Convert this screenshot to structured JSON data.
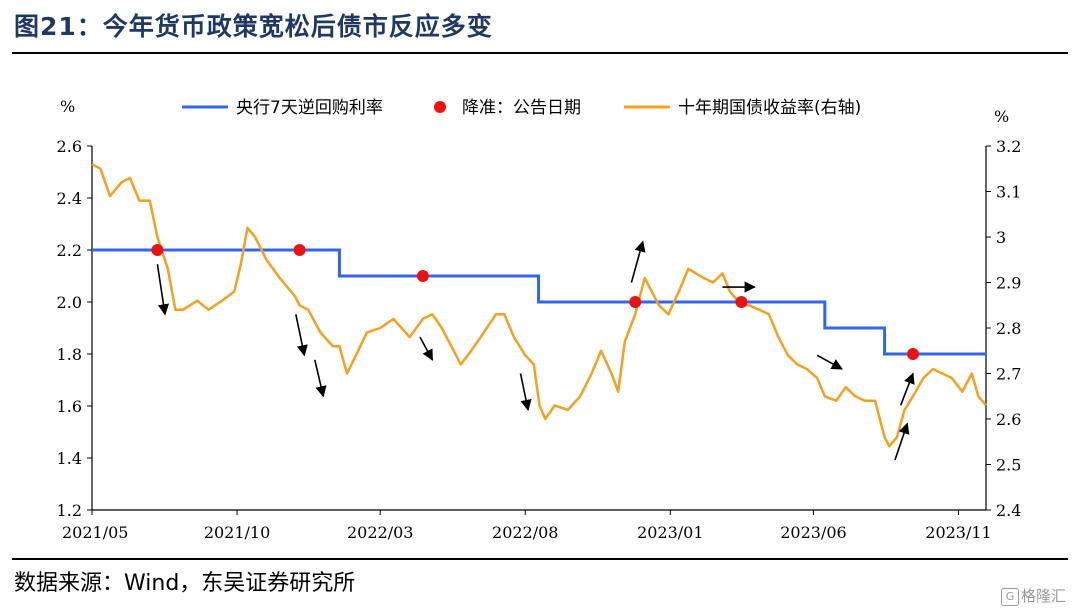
{
  "figure": {
    "title": "图21：今年货币政策宽松后债市反应多变",
    "source": "数据来源：Wind，东吴证券研究所",
    "watermark": "格隆汇"
  },
  "chart_data": {
    "type": "line",
    "left_axis": {
      "unit": "%",
      "ylim": [
        1.2,
        2.6
      ],
      "ticks": [
        "1.2",
        "1.4",
        "1.6",
        "1.8",
        "2.0",
        "2.2",
        "2.4",
        "2.6"
      ]
    },
    "right_axis": {
      "unit": "%",
      "ylim": [
        2.4,
        3.2
      ],
      "ticks": [
        "2.4",
        "2.5",
        "2.6",
        "2.7",
        "2.8",
        "2.9",
        "3",
        "3.1",
        "3.2"
      ]
    },
    "x_axis": {
      "range": [
        "2021-05-01",
        "2023-11-30"
      ],
      "tick_labels": [
        "2021/05",
        "2021/10",
        "2022/03",
        "2022/08",
        "2023/01",
        "2023/06",
        "2023/11"
      ],
      "tick_dates": [
        "2021-05-01",
        "2021-10-01",
        "2022-03-01",
        "2022-08-01",
        "2023-01-01",
        "2023-06-01",
        "2023-11-01"
      ]
    },
    "grid": false,
    "legend_position": "top",
    "series": [
      {
        "name": "央行7天逆回购利率",
        "axis": "left",
        "color": "#3366ee",
        "style": "step",
        "points": [
          [
            "2021-05-01",
            2.2
          ],
          [
            "2022-01-17",
            2.1
          ],
          [
            "2022-08-15",
            2.0
          ],
          [
            "2023-06-13",
            1.9
          ],
          [
            "2023-08-15",
            1.8
          ],
          [
            "2023-11-30",
            1.8
          ]
        ]
      },
      {
        "name": "降准：公告日期",
        "axis": "left",
        "color": "#ee1111",
        "style": "marker",
        "points": [
          [
            "2021-07-09",
            2.2
          ],
          [
            "2021-12-06",
            2.2
          ],
          [
            "2022-04-15",
            2.1
          ],
          [
            "2022-11-25",
            2.0
          ],
          [
            "2023-03-17",
            2.0
          ],
          [
            "2023-09-14",
            1.8
          ]
        ]
      },
      {
        "name": "十年期国债收益率(右轴)",
        "axis": "right",
        "color": "#f5a01e",
        "style": "line",
        "points": [
          [
            "2021-05-01",
            3.16
          ],
          [
            "2021-05-10",
            3.15
          ],
          [
            "2021-05-20",
            3.09
          ],
          [
            "2021-06-01",
            3.12
          ],
          [
            "2021-06-10",
            3.13
          ],
          [
            "2021-06-20",
            3.08
          ],
          [
            "2021-07-01",
            3.08
          ],
          [
            "2021-07-09",
            3.0
          ],
          [
            "2021-07-20",
            2.93
          ],
          [
            "2021-07-28",
            2.84
          ],
          [
            "2021-08-05",
            2.84
          ],
          [
            "2021-08-20",
            2.86
          ],
          [
            "2021-09-01",
            2.84
          ],
          [
            "2021-09-15",
            2.86
          ],
          [
            "2021-09-28",
            2.88
          ],
          [
            "2021-10-05",
            2.94
          ],
          [
            "2021-10-12",
            3.02
          ],
          [
            "2021-10-20",
            3.0
          ],
          [
            "2021-11-01",
            2.95
          ],
          [
            "2021-11-15",
            2.91
          ],
          [
            "2021-12-01",
            2.87
          ],
          [
            "2021-12-06",
            2.85
          ],
          [
            "2021-12-15",
            2.84
          ],
          [
            "2021-12-28",
            2.79
          ],
          [
            "2022-01-10",
            2.76
          ],
          [
            "2022-01-17",
            2.76
          ],
          [
            "2022-01-25",
            2.7
          ],
          [
            "2022-02-01",
            2.73
          ],
          [
            "2022-02-15",
            2.79
          ],
          [
            "2022-03-01",
            2.8
          ],
          [
            "2022-03-15",
            2.82
          ],
          [
            "2022-04-01",
            2.78
          ],
          [
            "2022-04-15",
            2.82
          ],
          [
            "2022-04-25",
            2.83
          ],
          [
            "2022-05-05",
            2.8
          ],
          [
            "2022-05-15",
            2.76
          ],
          [
            "2022-05-25",
            2.72
          ],
          [
            "2022-06-05",
            2.75
          ],
          [
            "2022-06-15",
            2.78
          ],
          [
            "2022-07-01",
            2.83
          ],
          [
            "2022-07-10",
            2.83
          ],
          [
            "2022-07-20",
            2.78
          ],
          [
            "2022-08-01",
            2.74
          ],
          [
            "2022-08-10",
            2.72
          ],
          [
            "2022-08-16",
            2.63
          ],
          [
            "2022-08-22",
            2.6
          ],
          [
            "2022-09-01",
            2.63
          ],
          [
            "2022-09-15",
            2.62
          ],
          [
            "2022-09-28",
            2.65
          ],
          [
            "2022-10-10",
            2.7
          ],
          [
            "2022-10-20",
            2.75
          ],
          [
            "2022-10-31",
            2.7
          ],
          [
            "2022-11-07",
            2.66
          ],
          [
            "2022-11-14",
            2.77
          ],
          [
            "2022-11-25",
            2.83
          ],
          [
            "2022-12-05",
            2.91
          ],
          [
            "2022-12-10",
            2.89
          ],
          [
            "2022-12-20",
            2.85
          ],
          [
            "2022-12-30",
            2.83
          ],
          [
            "2023-01-10",
            2.88
          ],
          [
            "2023-01-20",
            2.93
          ],
          [
            "2023-02-05",
            2.91
          ],
          [
            "2023-02-15",
            2.9
          ],
          [
            "2023-02-25",
            2.92
          ],
          [
            "2023-03-05",
            2.88
          ],
          [
            "2023-03-17",
            2.85
          ],
          [
            "2023-03-25",
            2.85
          ],
          [
            "2023-04-05",
            2.84
          ],
          [
            "2023-04-15",
            2.83
          ],
          [
            "2023-04-25",
            2.78
          ],
          [
            "2023-05-05",
            2.74
          ],
          [
            "2023-05-15",
            2.72
          ],
          [
            "2023-05-25",
            2.71
          ],
          [
            "2023-06-05",
            2.69
          ],
          [
            "2023-06-13",
            2.65
          ],
          [
            "2023-06-25",
            2.64
          ],
          [
            "2023-07-05",
            2.67
          ],
          [
            "2023-07-15",
            2.65
          ],
          [
            "2023-07-25",
            2.64
          ],
          [
            "2023-08-05",
            2.64
          ],
          [
            "2023-08-10",
            2.6
          ],
          [
            "2023-08-15",
            2.56
          ],
          [
            "2023-08-20",
            2.54
          ],
          [
            "2023-08-28",
            2.56
          ],
          [
            "2023-09-05",
            2.62
          ],
          [
            "2023-09-14",
            2.65
          ],
          [
            "2023-09-25",
            2.69
          ],
          [
            "2023-10-05",
            2.71
          ],
          [
            "2023-10-15",
            2.7
          ],
          [
            "2023-10-25",
            2.69
          ],
          [
            "2023-11-05",
            2.66
          ],
          [
            "2023-11-15",
            2.7
          ],
          [
            "2023-11-22",
            2.65
          ],
          [
            "2023-11-30",
            2.63
          ]
        ]
      }
    ],
    "trend_arrows": [
      {
        "from": [
          "2021-07-09",
          2.94
        ],
        "to": [
          "2021-07-17",
          2.83
        ]
      },
      {
        "from": [
          "2021-12-02",
          2.83
        ],
        "to": [
          "2021-12-11",
          2.74
        ]
      },
      {
        "from": [
          "2021-12-22",
          2.73
        ],
        "to": [
          "2021-12-31",
          2.65
        ]
      },
      {
        "from": [
          "2022-04-12",
          2.78
        ],
        "to": [
          "2022-04-25",
          2.73
        ]
      },
      {
        "from": [
          "2022-07-27",
          2.7
        ],
        "to": [
          "2022-08-04",
          2.62
        ]
      },
      {
        "from": [
          "2022-11-21",
          2.9
        ],
        "to": [
          "2022-12-03",
          2.99
        ]
      },
      {
        "from": [
          "2023-02-25",
          2.89
        ],
        "to": [
          "2023-03-31",
          2.89
        ]
      },
      {
        "from": [
          "2023-06-05",
          2.74
        ],
        "to": [
          "2023-07-01",
          2.71
        ]
      },
      {
        "from": [
          "2023-08-26",
          2.51
        ],
        "to": [
          "2023-09-08",
          2.59
        ]
      },
      {
        "from": [
          "2023-09-01",
          2.63
        ],
        "to": [
          "2023-09-14",
          2.7
        ]
      }
    ]
  }
}
